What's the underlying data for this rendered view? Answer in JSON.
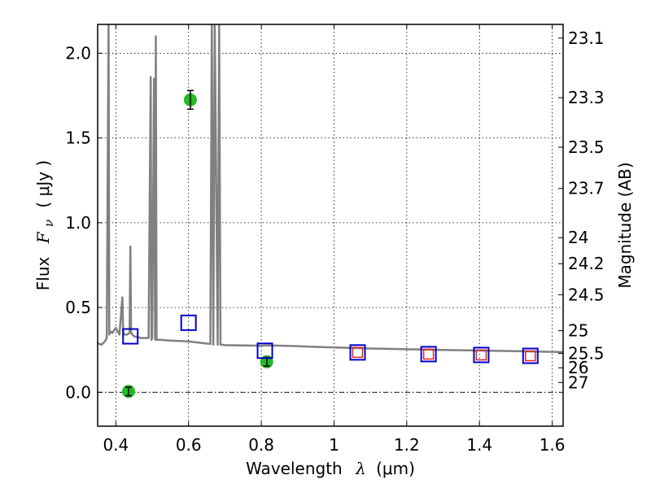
{
  "chart_data": {
    "type": "scatter",
    "xlabel": "Wavelength",
    "xlabel_symbol": "λ",
    "xlabel_unit": "(μm)",
    "ylabel": "Flux",
    "ylabel_symbol": "F",
    "ylabel_sub": "ν",
    "ylabel_unit": "( μJy )",
    "y2label": "Magnitude (AB)",
    "xlim": [
      0.35,
      1.63
    ],
    "ylim": [
      -0.2,
      2.17
    ],
    "grid": true,
    "x_ticks": [
      {
        "value": 0.4,
        "label": "0.4"
      },
      {
        "value": 0.6,
        "label": "0.6"
      },
      {
        "value": 0.8,
        "label": "0.8"
      },
      {
        "value": 1.0,
        "label": "1"
      },
      {
        "value": 1.2,
        "label": "1.2"
      },
      {
        "value": 1.4,
        "label": "1.4"
      },
      {
        "value": 1.6,
        "label": "1.6"
      }
    ],
    "y_ticks": [
      {
        "value": 0.0,
        "label": "0.0"
      },
      {
        "value": 0.5,
        "label": "0.5"
      },
      {
        "value": 1.0,
        "label": "1.0"
      },
      {
        "value": 1.5,
        "label": "1.5"
      },
      {
        "value": 2.0,
        "label": "2.0"
      }
    ],
    "mag_ticks": [
      {
        "value": 23.1,
        "label": "23.1"
      },
      {
        "value": 23.3,
        "label": "23.3"
      },
      {
        "value": 23.5,
        "label": "23.5"
      },
      {
        "value": 23.7,
        "label": "23.7"
      },
      {
        "value": 24,
        "label": "24"
      },
      {
        "value": 24.2,
        "label": "24.2"
      },
      {
        "value": 24.5,
        "label": "24.5"
      },
      {
        "value": 25,
        "label": "25"
      },
      {
        "value": 25.5,
        "label": "25.5"
      },
      {
        "value": 26,
        "label": "26"
      },
      {
        "value": 27,
        "label": "27"
      }
    ],
    "series": [
      {
        "name": "template-spectrum",
        "kind": "line",
        "color": "#808080",
        "x": [
          0.35,
          0.36,
          0.37,
          0.375,
          0.38,
          0.382,
          0.385,
          0.39,
          0.4,
          0.41,
          0.418,
          0.42,
          0.422,
          0.43,
          0.438,
          0.44,
          0.442,
          0.45,
          0.47,
          0.49,
          0.496,
          0.498,
          0.5,
          0.505,
          0.508,
          0.51,
          0.512,
          0.52,
          0.55,
          0.6,
          0.64,
          0.66,
          0.664,
          0.668,
          0.672,
          0.68,
          0.684,
          0.688,
          0.692,
          0.7,
          0.75,
          0.8,
          0.82,
          0.85,
          0.9,
          0.95,
          1.0,
          1.1,
          1.2,
          1.3,
          1.4,
          1.5,
          1.63
        ],
        "y": [
          0.29,
          0.28,
          0.3,
          0.32,
          2.17,
          0.34,
          0.36,
          0.35,
          0.38,
          0.34,
          0.56,
          0.36,
          0.34,
          0.34,
          0.35,
          0.86,
          0.35,
          0.33,
          0.32,
          0.32,
          1.86,
          0.31,
          0.32,
          1.85,
          0.31,
          2.1,
          0.31,
          0.31,
          0.305,
          0.3,
          0.29,
          0.285,
          2.17,
          0.28,
          2.17,
          0.28,
          2.17,
          0.28,
          0.28,
          0.278,
          0.276,
          0.275,
          0.277,
          0.275,
          0.272,
          0.268,
          0.265,
          0.258,
          0.254,
          0.25,
          0.246,
          0.243,
          0.237
        ]
      },
      {
        "name": "observed-photometry",
        "kind": "points",
        "color": "#22bb22",
        "x": [
          0.435,
          0.605,
          0.815
        ],
        "y": [
          0.005,
          1.725,
          0.18
        ],
        "err": [
          0.025,
          0.055,
          0.025
        ]
      },
      {
        "name": "model-photometry-blue",
        "kind": "squares",
        "color": "#0000cc",
        "x": [
          0.44,
          0.6,
          0.81,
          1.065,
          1.26,
          1.405,
          1.54
        ],
        "y": [
          0.33,
          0.41,
          0.245,
          0.235,
          0.225,
          0.22,
          0.215
        ]
      },
      {
        "name": "model-photometry-red",
        "kind": "squares",
        "color": "#dd2222",
        "x": [
          1.065,
          1.26,
          1.405,
          1.54
        ],
        "y": [
          0.235,
          0.225,
          0.22,
          0.215
        ]
      }
    ]
  }
}
